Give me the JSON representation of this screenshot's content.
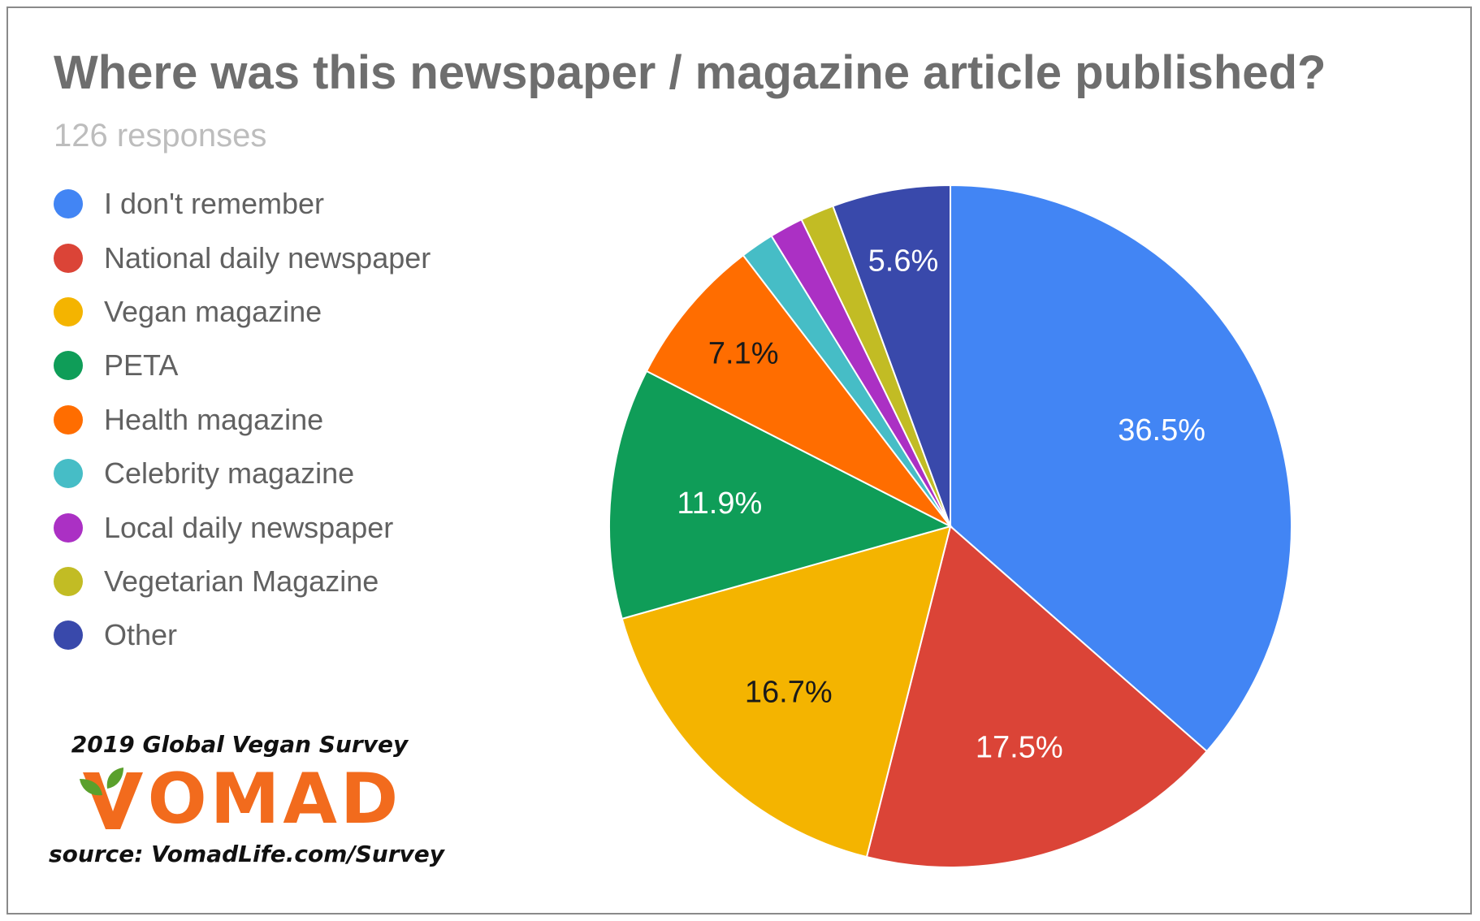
{
  "chart_data": {
    "type": "pie",
    "title": "Where was this newspaper / magazine article published?",
    "subtitle": "126 responses",
    "legend_position": "left",
    "slices": [
      {
        "label": "I don't remember",
        "value": 36.5,
        "data_label": "36.5%",
        "color": "#4285f4"
      },
      {
        "label": "National daily newspaper",
        "value": 17.5,
        "data_label": "17.5%",
        "color": "#db4437"
      },
      {
        "label": "Vegan magazine",
        "value": 16.7,
        "data_label": "16.7%",
        "color": "#f4b400"
      },
      {
        "label": "PETA",
        "value": 11.9,
        "data_label": "11.9%",
        "color": "#0f9d58"
      },
      {
        "label": "Health magazine",
        "value": 7.1,
        "data_label": "7.1%",
        "color": "#ff6d00"
      },
      {
        "label": "Celebrity magazine",
        "value": 1.6,
        "data_label": "",
        "color": "#46bdc6"
      },
      {
        "label": "Local daily newspaper",
        "value": 1.6,
        "data_label": "",
        "color": "#ab30c4"
      },
      {
        "label": "Vegetarian Magazine",
        "value": 1.6,
        "data_label": "",
        "color": "#c2bc24"
      },
      {
        "label": "Other",
        "value": 5.6,
        "data_label": "5.6%",
        "color": "#3949ab"
      }
    ]
  },
  "branding": {
    "survey_caption": "2019 Global Vegan Survey",
    "logo_text": "VOMAD",
    "logo_icon": "sprout-v-icon",
    "logo_color": "#f26b1d",
    "icon_color": "#5aa02c",
    "source_caption": "source: VomadLife.com/Survey"
  }
}
